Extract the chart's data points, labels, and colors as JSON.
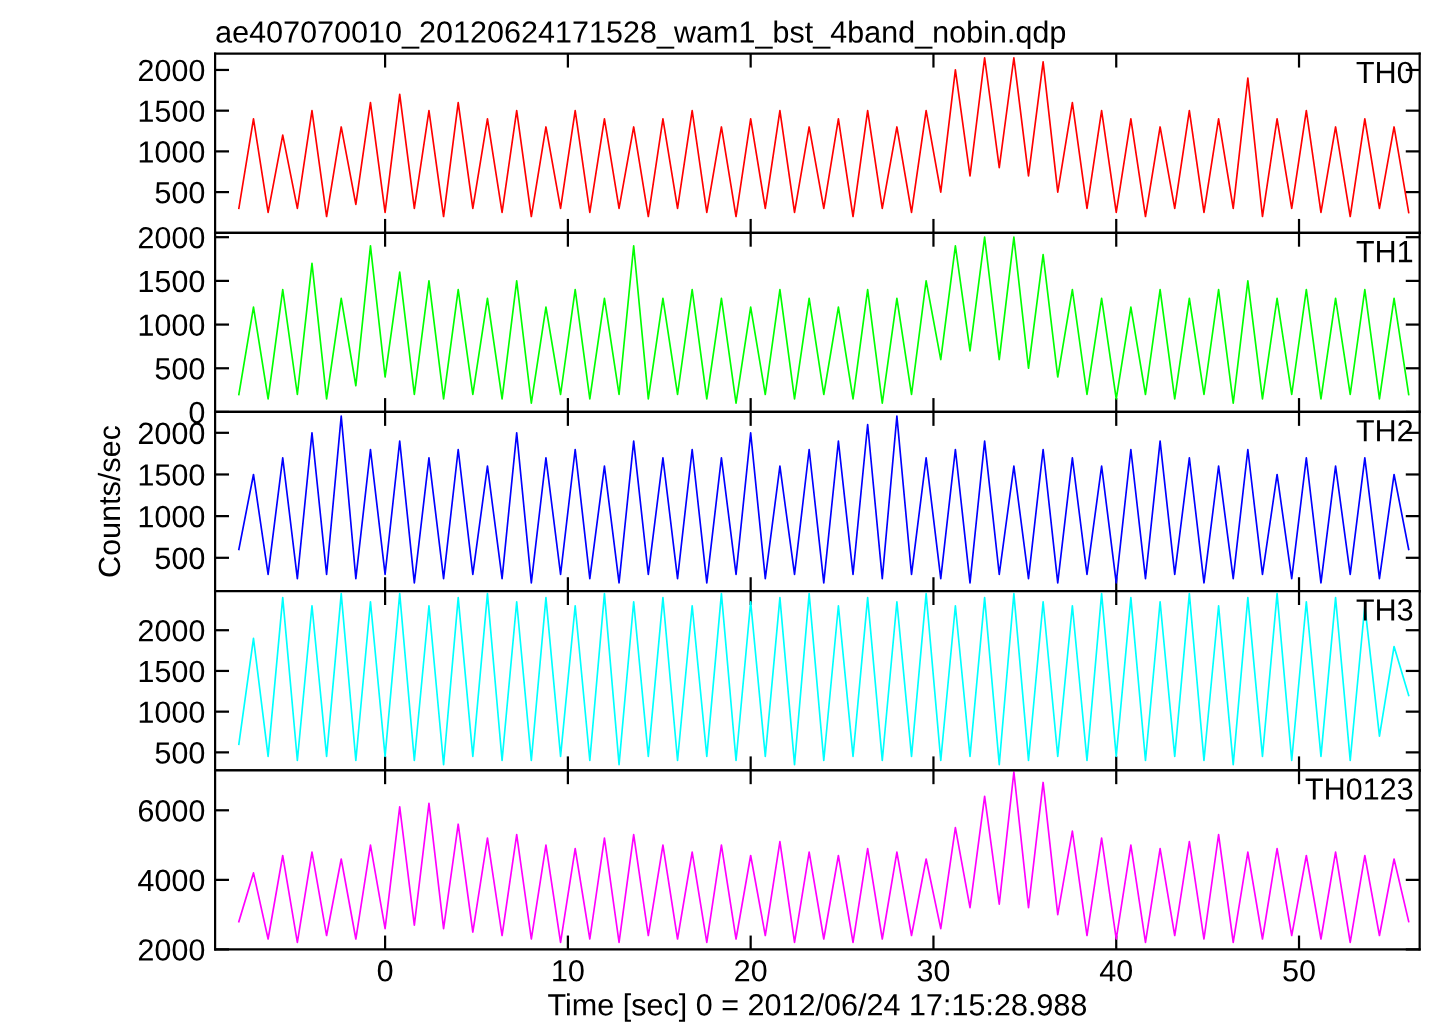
{
  "chart_data": [
    {
      "type": "line",
      "title": "ae407070010_20120624171528_wam1_bst_4band_nobin.qdp",
      "xlim": [
        -9.3,
        56.6
      ],
      "xticks": [
        0,
        10,
        20,
        30,
        40,
        50
      ],
      "ylim": [
        0,
        2200
      ],
      "yticks": [
        500,
        1000,
        1500,
        2000
      ],
      "tick_labels": "y",
      "grid": false,
      "x": [
        -8,
        -7.2,
        -6.4,
        -5.6,
        -4.8,
        -4,
        -3.2,
        -2.4,
        -1.6,
        -0.8,
        0,
        0.8,
        1.6,
        2.4,
        3.2,
        4,
        4.8,
        5.6,
        6.4,
        7.2,
        8,
        8.8,
        9.6,
        10.4,
        11.2,
        12,
        12.8,
        13.6,
        14.4,
        15.2,
        16,
        16.8,
        17.6,
        18.4,
        19.2,
        20,
        20.8,
        21.6,
        22.4,
        23.2,
        24,
        24.8,
        25.6,
        26.4,
        27.2,
        28,
        28.8,
        29.6,
        30.4,
        31.2,
        32,
        32.8,
        33.6,
        34.4,
        35.2,
        36,
        36.8,
        37.6,
        38.4,
        39.2,
        40,
        40.8,
        41.6,
        42.4,
        43.2,
        44,
        44.8,
        45.6,
        46.4,
        47.2,
        48,
        48.8,
        49.6,
        50.4,
        51.2,
        52,
        52.8,
        53.6,
        54.4,
        55.2,
        56
      ],
      "series": [
        {
          "name": "TH0",
          "color": "#ff0000",
          "values": [
            300,
            1400,
            250,
            1200,
            300,
            1500,
            200,
            1300,
            350,
            1600,
            250,
            1700,
            300,
            1500,
            200,
            1600,
            300,
            1400,
            250,
            1500,
            200,
            1300,
            300,
            1500,
            250,
            1400,
            300,
            1300,
            200,
            1400,
            300,
            1500,
            250,
            1300,
            200,
            1400,
            300,
            1500,
            250,
            1300,
            300,
            1400,
            200,
            1500,
            300,
            1300,
            250,
            1500,
            500,
            2000,
            700,
            2150,
            800,
            2150,
            700,
            2100,
            500,
            1600,
            300,
            1500,
            250,
            1400,
            200,
            1300,
            300,
            1500,
            250,
            1400,
            300,
            1900,
            200,
            1400,
            300,
            1500,
            250,
            1300,
            200,
            1400,
            300,
            1300,
            250
          ]
        }
      ]
    },
    {
      "type": "line",
      "xlim": [
        -9.3,
        56.6
      ],
      "xticks": [
        0,
        10,
        20,
        30,
        40,
        50
      ],
      "ylim": [
        0,
        2050
      ],
      "yticks": [
        0,
        500,
        1000,
        1500,
        2000
      ],
      "tick_labels": "y",
      "grid": false,
      "x": [
        -8,
        -7.2,
        -6.4,
        -5.6,
        -4.8,
        -4,
        -3.2,
        -2.4,
        -1.6,
        -0.8,
        0,
        0.8,
        1.6,
        2.4,
        3.2,
        4,
        4.8,
        5.6,
        6.4,
        7.2,
        8,
        8.8,
        9.6,
        10.4,
        11.2,
        12,
        12.8,
        13.6,
        14.4,
        15.2,
        16,
        16.8,
        17.6,
        18.4,
        19.2,
        20,
        20.8,
        21.6,
        22.4,
        23.2,
        24,
        24.8,
        25.6,
        26.4,
        27.2,
        28,
        28.8,
        29.6,
        30.4,
        31.2,
        32,
        32.8,
        33.6,
        34.4,
        35.2,
        36,
        36.8,
        37.6,
        38.4,
        39.2,
        40,
        40.8,
        41.6,
        42.4,
        43.2,
        44,
        44.8,
        45.6,
        46.4,
        47.2,
        48,
        48.8,
        49.6,
        50.4,
        51.2,
        52,
        52.8,
        53.6,
        54.4,
        55.2,
        56
      ],
      "series": [
        {
          "name": "TH1",
          "color": "#00ff00",
          "values": [
            200,
            1200,
            150,
            1400,
            200,
            1700,
            150,
            1300,
            300,
            1900,
            400,
            1600,
            200,
            1500,
            150,
            1400,
            200,
            1300,
            150,
            1500,
            100,
            1200,
            200,
            1400,
            150,
            1300,
            200,
            1900,
            150,
            1300,
            200,
            1400,
            150,
            1300,
            100,
            1200,
            200,
            1400,
            150,
            1300,
            200,
            1200,
            150,
            1400,
            100,
            1300,
            200,
            1500,
            600,
            1900,
            700,
            2000,
            600,
            2000,
            500,
            1800,
            400,
            1400,
            200,
            1300,
            150,
            1200,
            200,
            1400,
            150,
            1300,
            200,
            1400,
            100,
            1500,
            150,
            1300,
            200,
            1400,
            150,
            1300,
            200,
            1400,
            150,
            1300,
            200
          ]
        }
      ]
    },
    {
      "type": "line",
      "ylabel": "Counts/sec",
      "xlim": [
        -9.3,
        56.6
      ],
      "xticks": [
        0,
        10,
        20,
        30,
        40,
        50
      ],
      "ylim": [
        100,
        2250
      ],
      "yticks": [
        500,
        1000,
        1500,
        2000
      ],
      "tick_labels": "y",
      "grid": false,
      "x": [
        -8,
        -7.2,
        -6.4,
        -5.6,
        -4.8,
        -4,
        -3.2,
        -2.4,
        -1.6,
        -0.8,
        0,
        0.8,
        1.6,
        2.4,
        3.2,
        4,
        4.8,
        5.6,
        6.4,
        7.2,
        8,
        8.8,
        9.6,
        10.4,
        11.2,
        12,
        12.8,
        13.6,
        14.4,
        15.2,
        16,
        16.8,
        17.6,
        18.4,
        19.2,
        20,
        20.8,
        21.6,
        22.4,
        23.2,
        24,
        24.8,
        25.6,
        26.4,
        27.2,
        28,
        28.8,
        29.6,
        30.4,
        31.2,
        32,
        32.8,
        33.6,
        34.4,
        35.2,
        36,
        36.8,
        37.6,
        38.4,
        39.2,
        40,
        40.8,
        41.6,
        42.4,
        43.2,
        44,
        44.8,
        45.6,
        46.4,
        47.2,
        48,
        48.8,
        49.6,
        50.4,
        51.2,
        52,
        52.8,
        53.6,
        54.4,
        55.2,
        56
      ],
      "series": [
        {
          "name": "TH2",
          "color": "#0000ff",
          "values": [
            600,
            1500,
            300,
            1700,
            250,
            2000,
            300,
            2200,
            250,
            1800,
            300,
            1900,
            200,
            1700,
            250,
            1800,
            300,
            1600,
            250,
            2000,
            200,
            1700,
            300,
            1800,
            250,
            1600,
            200,
            1900,
            300,
            1700,
            250,
            1800,
            200,
            1700,
            300,
            2000,
            250,
            1600,
            300,
            1800,
            200,
            1900,
            300,
            2100,
            250,
            2200,
            300,
            1700,
            250,
            1800,
            200,
            1900,
            300,
            1600,
            250,
            1800,
            200,
            1700,
            300,
            1600,
            200,
            1800,
            250,
            1900,
            300,
            1700,
            200,
            1600,
            250,
            1800,
            300,
            1500,
            250,
            1700,
            200,
            1600,
            300,
            1700,
            250,
            1500,
            600
          ]
        }
      ]
    },
    {
      "type": "line",
      "xlim": [
        -9.3,
        56.6
      ],
      "xticks": [
        0,
        10,
        20,
        30,
        40,
        50
      ],
      "ylim": [
        280,
        2480
      ],
      "yticks": [
        500,
        1000,
        1500,
        2000
      ],
      "tick_labels": "y",
      "grid": false,
      "x": [
        -8,
        -7.2,
        -6.4,
        -5.6,
        -4.8,
        -4,
        -3.2,
        -2.4,
        -1.6,
        -0.8,
        0,
        0.8,
        1.6,
        2.4,
        3.2,
        4,
        4.8,
        5.6,
        6.4,
        7.2,
        8,
        8.8,
        9.6,
        10.4,
        11.2,
        12,
        12.8,
        13.6,
        14.4,
        15.2,
        16,
        16.8,
        17.6,
        18.4,
        19.2,
        20,
        20.8,
        21.6,
        22.4,
        23.2,
        24,
        24.8,
        25.6,
        26.4,
        27.2,
        28,
        28.8,
        29.6,
        30.4,
        31.2,
        32,
        32.8,
        33.6,
        34.4,
        35.2,
        36,
        36.8,
        37.6,
        38.4,
        39.2,
        40,
        40.8,
        41.6,
        42.4,
        43.2,
        44,
        44.8,
        45.6,
        46.4,
        47.2,
        48,
        48.8,
        49.6,
        50.4,
        51.2,
        52,
        52.8,
        53.6,
        54.4,
        55.2,
        56
      ],
      "series": [
        {
          "name": "TH3",
          "color": "#00ffff",
          "values": [
            600,
            1900,
            450,
            2400,
            400,
            2300,
            450,
            2450,
            400,
            2350,
            450,
            2450,
            400,
            2300,
            350,
            2400,
            450,
            2450,
            400,
            2350,
            400,
            2400,
            450,
            2300,
            400,
            2450,
            350,
            2350,
            450,
            2400,
            400,
            2300,
            450,
            2450,
            400,
            2350,
            450,
            2400,
            350,
            2450,
            400,
            2300,
            450,
            2400,
            400,
            2350,
            450,
            2450,
            400,
            2300,
            450,
            2400,
            350,
            2450,
            400,
            2350,
            450,
            2300,
            400,
            2450,
            450,
            2400,
            400,
            2350,
            450,
            2450,
            400,
            2300,
            350,
            2400,
            450,
            2450,
            400,
            2350,
            450,
            2400,
            400,
            2300,
            700,
            1800,
            1200
          ]
        }
      ]
    },
    {
      "type": "line",
      "xlabel": "Time [sec] 0 = 2012/06/24 17:15:28.988",
      "xlim": [
        -9.3,
        56.6
      ],
      "xticks": [
        0,
        10,
        20,
        30,
        40,
        50
      ],
      "ylim": [
        2000,
        7150
      ],
      "yticks": [
        2000,
        4000,
        6000
      ],
      "grid": false,
      "x": [
        -8,
        -7.2,
        -6.4,
        -5.6,
        -4.8,
        -4,
        -3.2,
        -2.4,
        -1.6,
        -0.8,
        0,
        0.8,
        1.6,
        2.4,
        3.2,
        4,
        4.8,
        5.6,
        6.4,
        7.2,
        8,
        8.8,
        9.6,
        10.4,
        11.2,
        12,
        12.8,
        13.6,
        14.4,
        15.2,
        16,
        16.8,
        17.6,
        18.4,
        19.2,
        20,
        20.8,
        21.6,
        22.4,
        23.2,
        24,
        24.8,
        25.6,
        26.4,
        27.2,
        28,
        28.8,
        29.6,
        30.4,
        31.2,
        32,
        32.8,
        33.6,
        34.4,
        35.2,
        36,
        36.8,
        37.6,
        38.4,
        39.2,
        40,
        40.8,
        41.6,
        42.4,
        43.2,
        44,
        44.8,
        45.6,
        46.4,
        47.2,
        48,
        48.8,
        49.6,
        50.4,
        51.2,
        52,
        52.8,
        53.6,
        54.4,
        55.2,
        56
      ],
      "series": [
        {
          "name": "TH0123",
          "color": "#ff00ff",
          "values": [
            2800,
            4200,
            2300,
            4700,
            2200,
            4800,
            2400,
            4600,
            2300,
            5000,
            2600,
            6100,
            2700,
            6200,
            2600,
            5600,
            2500,
            5200,
            2400,
            5300,
            2300,
            5000,
            2200,
            4900,
            2300,
            5200,
            2200,
            5300,
            2400,
            5000,
            2300,
            4800,
            2200,
            5000,
            2300,
            4700,
            2400,
            5100,
            2200,
            4800,
            2300,
            4700,
            2200,
            4900,
            2300,
            4800,
            2400,
            4600,
            2600,
            5500,
            3200,
            6400,
            3300,
            7100,
            3200,
            6800,
            3000,
            5400,
            2400,
            5200,
            2300,
            5000,
            2200,
            4900,
            2400,
            5100,
            2300,
            5300,
            2200,
            4800,
            2300,
            4900,
            2400,
            4700,
            2300,
            4800,
            2200,
            4700,
            2400,
            4600,
            2800
          ]
        }
      ]
    }
  ]
}
